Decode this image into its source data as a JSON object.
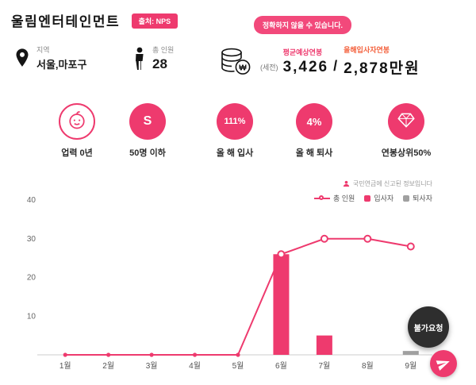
{
  "header": {
    "company_name": "울림엔터테인먼트",
    "source_badge": "출처: NPS",
    "notice": "정확하지 않을 수 있습니다."
  },
  "info": {
    "location": {
      "label": "지역",
      "value": "서울,마포구"
    },
    "headcount": {
      "label": "총 인원",
      "value": "28"
    },
    "salary": {
      "label": "평균예상연봉",
      "pretax": "(세전)",
      "average": "3,426",
      "separator": "/",
      "newhire_label": "올해입사자연봉",
      "newhire": "2,878만원"
    }
  },
  "stats": [
    {
      "id": "company-age",
      "icon": "baby-face-icon",
      "circle_text": "",
      "label": "업력 0년",
      "style": "outline"
    },
    {
      "id": "company-size",
      "icon": "",
      "circle_text": "S",
      "label": "50명 이하",
      "style": "filled"
    },
    {
      "id": "hire-rate",
      "icon": "",
      "circle_text": "111%",
      "label": "올 해 입사",
      "style": "filled"
    },
    {
      "id": "quit-rate",
      "icon": "",
      "circle_text": "4%",
      "label": "올 해 퇴사",
      "style": "filled"
    },
    {
      "id": "salary-rank",
      "icon": "gem-icon",
      "circle_text": "",
      "label": "연봉상위50%",
      "style": "filled"
    }
  ],
  "chart_data": {
    "type": "bar+line combo",
    "note": "국민연금에 신고된 정보입니다",
    "categories": [
      "1월",
      "2월",
      "3월",
      "4월",
      "5월",
      "6월",
      "7월",
      "8월",
      "9월"
    ],
    "series": [
      {
        "name": "총 인원",
        "type": "line",
        "color": "#ee3a6e",
        "values": [
          0,
          0,
          0,
          0,
          0,
          26,
          30,
          30,
          28
        ]
      },
      {
        "name": "입사자",
        "type": "bar",
        "color": "#ee3a6e",
        "values": [
          0,
          0,
          0,
          0,
          0,
          26,
          5,
          0,
          0
        ]
      },
      {
        "name": "퇴사자",
        "type": "bar",
        "color": "#a0a0a0",
        "values": [
          0,
          0,
          0,
          0,
          0,
          0,
          0,
          0,
          1
        ]
      }
    ],
    "ylim": [
      0,
      40
    ],
    "yticks": [
      10,
      20,
      30,
      40
    ],
    "legend_position": "top-right",
    "grid": false
  },
  "floats": {
    "unavailable_label": "불가요청",
    "send_icon": "paper-plane-icon"
  },
  "colors": {
    "primary": "#ee3a6e",
    "orange_label": "#f4623e",
    "gray_bar": "#a0a0a0",
    "dark_badge": "#2e2e2e"
  }
}
